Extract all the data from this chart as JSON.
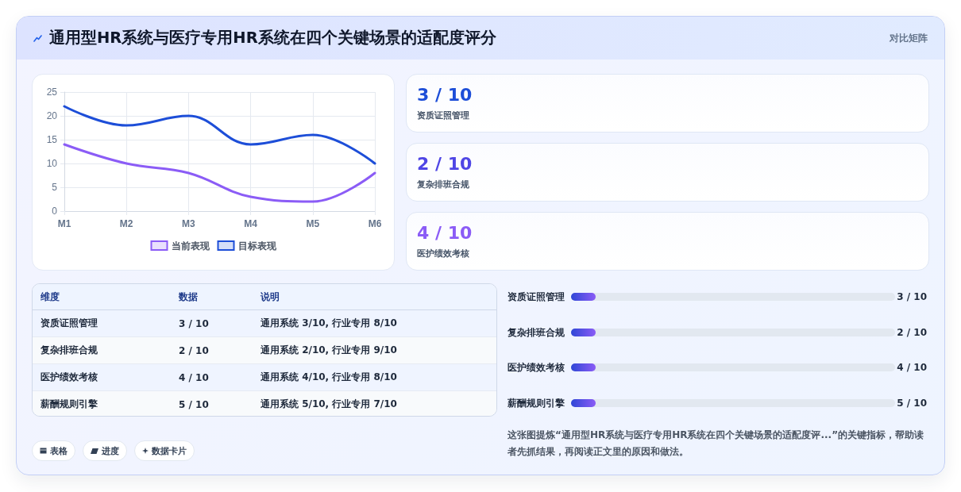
{
  "chart_data": [
    {
      "type": "other",
      "title": "通用型HR系统与医疗专用HR系统在四个关键场景的适配度评分",
      "subtitle": "对比矩阵"
    },
    {
      "type": "line",
      "categories": [
        "M1",
        "M2",
        "M3",
        "M4",
        "M5",
        "M6"
      ],
      "series": [
        {
          "name": "当前表现",
          "color": "#8b5cf6",
          "values": [
            14,
            10,
            8,
            3,
            2,
            8
          ]
        },
        {
          "name": "目标表现",
          "color": "#1d4ed8",
          "values": [
            22,
            18,
            20,
            14,
            16,
            10
          ]
        }
      ],
      "ylim": [
        0,
        25
      ],
      "yticks": [
        0,
        5,
        10,
        15,
        20,
        25
      ],
      "grid": true,
      "legend": "bottom",
      "marker": "none",
      "line_style": "solid"
    },
    {
      "type": "other",
      "annotations": [
        "3 / 10",
        "资质证照管理",
        "2 / 10",
        "复杂排班合规",
        "4 / 10",
        "医护绩效考核"
      ],
      "colors": [
        "#1d4ed8",
        "#4f46e5",
        "#8b5cf6"
      ]
    },
    {
      "type": "other",
      "annotations": [
        "维度",
        "数据",
        "说明",
        "资质证照管理",
        "3 / 10",
        "通用系统 3/10, 行业专用 8/10",
        "复杂排班合规",
        "2 / 10",
        "通用系统 2/10, 行业专用 9/10",
        "医护绩效考核",
        "4 / 10",
        "通用系统 4/10, 行业专用 8/10",
        "薪酬规则引擎",
        "5 / 10",
        "通用系统 5/10, 行业专用 7/10"
      ]
    },
    {
      "type": "other",
      "annotations": [
        "资质证照管理",
        "3 / 10",
        "复杂排班合规",
        "2 / 10",
        "医护绩效考核",
        "4 / 10",
        "薪酬规则引擎",
        "5 / 10"
      ]
    },
    {
      "type": "other",
      "annotations": [
        "表格",
        "进度",
        "数据卡片",
        "这张图提炼“通用型HR系统与医疗专用HR系统在四个关键场景的适配度评...”的关键指标，帮助读者先抓结果，再阅读正文里的原因和做法。"
      ]
    }
  ]
}
